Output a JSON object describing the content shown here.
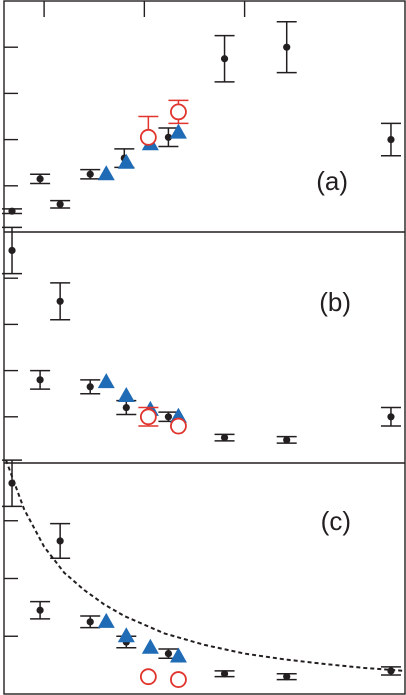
{
  "colors": {
    "black_series": "#231f20",
    "triangle_series": "#1f6bb5",
    "circle_series": "#e0342c",
    "frame": "#231f20"
  },
  "chart_data": [
    {
      "type": "scatter",
      "panel_label": "(a)",
      "xlim": [
        0,
        10
      ],
      "ylim": [
        0,
        5
      ],
      "x_ticks": [
        1,
        3.5,
        6
      ],
      "y_ticks": [
        1,
        2,
        3,
        4
      ],
      "grid": false,
      "series": [
        {
          "marker": "dot",
          "color": "#231f20",
          "points": [
            {
              "x": 0.2,
              "y": 0.45,
              "err": 0.05
            },
            {
              "x": 0.9,
              "y": 1.15,
              "err": 0.1
            },
            {
              "x": 1.4,
              "y": 0.6,
              "err": 0.08
            },
            {
              "x": 2.15,
              "y": 1.25,
              "err": 0.1
            },
            {
              "x": 3.0,
              "y": 1.6,
              "err": 0.2
            },
            {
              "x": 4.1,
              "y": 2.05,
              "err": 0.2
            },
            {
              "x": 5.5,
              "y": 3.75,
              "err": 0.5
            },
            {
              "x": 7.05,
              "y": 4.0,
              "err": 0.55
            },
            {
              "x": 9.65,
              "y": 2.0,
              "err": 0.35
            }
          ]
        },
        {
          "marker": "triangle",
          "color": "#1f6bb5",
          "points": [
            {
              "x": 2.55,
              "y": 1.25
            },
            {
              "x": 3.05,
              "y": 1.5
            },
            {
              "x": 3.65,
              "y": 1.9
            },
            {
              "x": 4.35,
              "y": 2.15
            }
          ]
        },
        {
          "marker": "open-circle",
          "color": "#e0342c",
          "points": [
            {
              "x": 3.6,
              "y": 2.05,
              "err_up": 0.45
            },
            {
              "x": 4.35,
              "y": 2.6,
              "err": 0.25
            }
          ]
        }
      ]
    },
    {
      "type": "scatter",
      "panel_label": "(b)",
      "xlim": [
        0,
        10
      ],
      "ylim": [
        0,
        5
      ],
      "x_ticks": [
        1,
        3.5,
        6
      ],
      "y_ticks": [
        1,
        2,
        3,
        4
      ],
      "grid": false,
      "series": [
        {
          "marker": "dot",
          "color": "#231f20",
          "points": [
            {
              "x": 0.2,
              "y": 4.6,
              "err": 0.5
            },
            {
              "x": 0.9,
              "y": 1.8,
              "err": 0.2
            },
            {
              "x": 1.4,
              "y": 3.5,
              "err": 0.4
            },
            {
              "x": 2.15,
              "y": 1.65,
              "err": 0.15
            },
            {
              "x": 3.05,
              "y": 1.2,
              "err": 0.15
            },
            {
              "x": 4.1,
              "y": 1.0,
              "err": 0.1
            },
            {
              "x": 5.5,
              "y": 0.55,
              "err": 0.07
            },
            {
              "x": 7.05,
              "y": 0.5,
              "err": 0.07
            },
            {
              "x": 9.65,
              "y": 1.0,
              "err": 0.2
            }
          ]
        },
        {
          "marker": "triangle",
          "color": "#1f6bb5",
          "points": [
            {
              "x": 2.55,
              "y": 1.75
            },
            {
              "x": 3.05,
              "y": 1.45
            },
            {
              "x": 3.65,
              "y": 1.15
            },
            {
              "x": 4.35,
              "y": 1.0
            }
          ]
        },
        {
          "marker": "open-circle",
          "color": "#e0342c",
          "points": [
            {
              "x": 3.6,
              "y": 1.0,
              "err": 0.2
            },
            {
              "x": 4.35,
              "y": 0.8
            }
          ]
        }
      ]
    },
    {
      "type": "scatter",
      "panel_label": "(c)",
      "xlim": [
        0,
        10
      ],
      "ylim": [
        0,
        4
      ],
      "x_ticks": [
        1,
        3.5,
        6
      ],
      "y_ticks": [
        1,
        2,
        3
      ],
      "grid": false,
      "series": [
        {
          "marker": "dot",
          "color": "#231f20",
          "points": [
            {
              "x": 0.2,
              "y": 3.65,
              "err": 0.4
            },
            {
              "x": 0.9,
              "y": 1.45,
              "err": 0.15
            },
            {
              "x": 1.4,
              "y": 2.65,
              "err": 0.3
            },
            {
              "x": 2.15,
              "y": 1.25,
              "err": 0.1
            },
            {
              "x": 3.05,
              "y": 0.9,
              "err": 0.1
            },
            {
              "x": 4.1,
              "y": 0.7,
              "err": 0.08
            },
            {
              "x": 5.5,
              "y": 0.35,
              "err": 0.05
            },
            {
              "x": 7.05,
              "y": 0.3,
              "err": 0.05
            },
            {
              "x": 9.65,
              "y": 0.4,
              "err": 0.07
            }
          ]
        },
        {
          "marker": "triangle",
          "color": "#1f6bb5",
          "points": [
            {
              "x": 2.55,
              "y": 1.25
            },
            {
              "x": 3.05,
              "y": 1.0
            },
            {
              "x": 3.65,
              "y": 0.8
            },
            {
              "x": 4.35,
              "y": 0.65
            }
          ]
        },
        {
          "marker": "open-circle",
          "color": "#e0342c",
          "points": [
            {
              "x": 3.6,
              "y": 0.3
            },
            {
              "x": 4.35,
              "y": 0.25
            }
          ]
        }
      ],
      "fit_curve": {
        "style": "dashed",
        "color": "#231f20",
        "points": [
          [
            0.05,
            4.05
          ],
          [
            0.5,
            3.2
          ],
          [
            1.0,
            2.55
          ],
          [
            1.5,
            2.1
          ],
          [
            2.0,
            1.8
          ],
          [
            2.5,
            1.55
          ],
          [
            3.0,
            1.35
          ],
          [
            3.5,
            1.2
          ],
          [
            4.0,
            1.05
          ],
          [
            5.0,
            0.85
          ],
          [
            6.0,
            0.7
          ],
          [
            7.0,
            0.6
          ],
          [
            8.0,
            0.52
          ],
          [
            9.0,
            0.45
          ],
          [
            10.0,
            0.4
          ]
        ]
      }
    }
  ]
}
